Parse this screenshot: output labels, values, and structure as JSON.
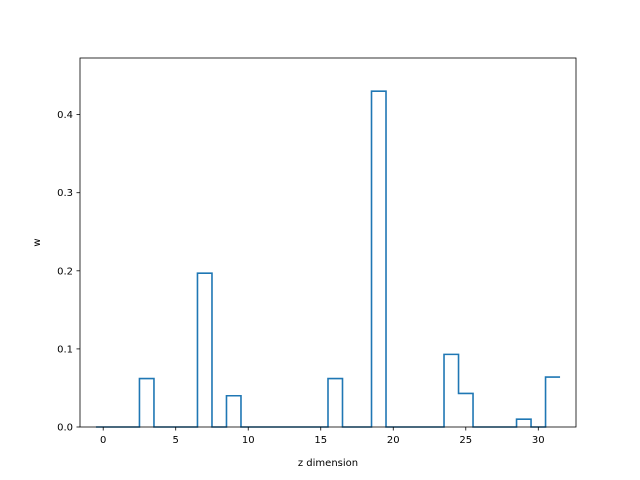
{
  "chart_data": {
    "type": "step",
    "step_style": "histogram-outline",
    "title": "",
    "xlabel": "z dimension",
    "ylabel": "w",
    "xlim": [
      -1.6,
      32.6
    ],
    "ylim": [
      0.0,
      0.4725
    ],
    "grid": false,
    "legend": "none",
    "series_color": "#1f77b4",
    "x_edges": [
      -0.5,
      0.5,
      1.5,
      2.5,
      3.5,
      4.5,
      5.5,
      6.5,
      7.5,
      8.5,
      9.5,
      10.5,
      11.5,
      12.5,
      13.5,
      14.5,
      15.5,
      16.5,
      17.5,
      18.5,
      19.5,
      20.5,
      21.5,
      22.5,
      23.5,
      24.5,
      25.5,
      26.5,
      27.5,
      28.5,
      29.5,
      30.5,
      31.5
    ],
    "x": [
      0,
      1,
      2,
      3,
      4,
      5,
      6,
      7,
      8,
      9,
      10,
      11,
      12,
      13,
      14,
      15,
      16,
      17,
      18,
      19,
      20,
      21,
      22,
      23,
      24,
      25,
      26,
      27,
      28,
      29,
      30,
      31
    ],
    "values": [
      0.0,
      0.0,
      0.0,
      0.062,
      0.0,
      0.0,
      0.0,
      0.197,
      0.0,
      0.04,
      0.0,
      0.0,
      0.0,
      0.0,
      0.0,
      0.0,
      0.062,
      0.0,
      0.0,
      0.43,
      0.0,
      0.0,
      0.0,
      0.0,
      0.093,
      0.043,
      0.0,
      0.0,
      0.0,
      0.01,
      0.0,
      0.064
    ],
    "x_ticks": [
      0,
      5,
      10,
      15,
      20,
      25,
      30
    ],
    "x_tick_labels": [
      "0",
      "5",
      "10",
      "15",
      "20",
      "25",
      "30"
    ],
    "y_ticks": [
      0.0,
      0.1,
      0.2,
      0.3,
      0.4
    ],
    "y_tick_labels": [
      "0.0",
      "0.1",
      "0.2",
      "0.3",
      "0.4"
    ]
  }
}
